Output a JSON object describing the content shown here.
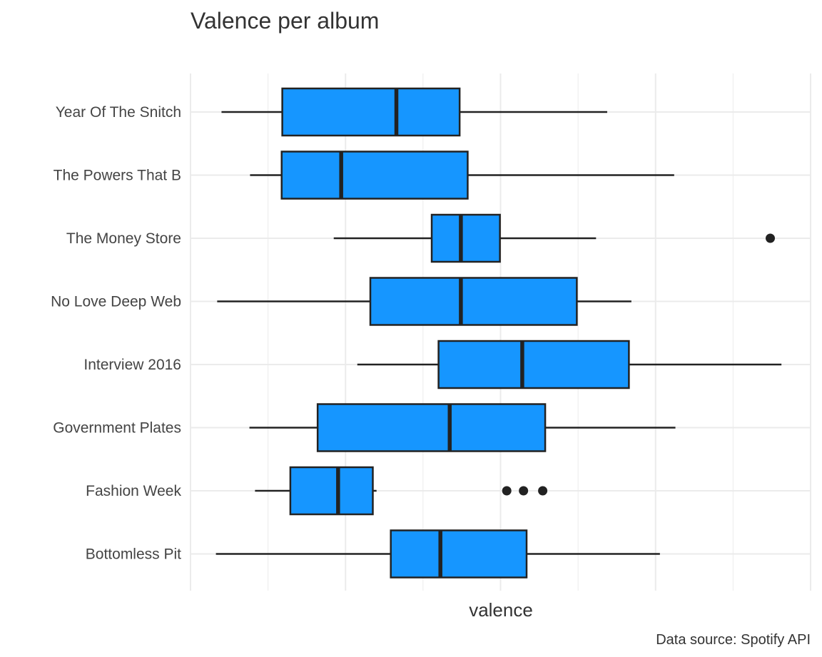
{
  "chart_data": {
    "type": "boxplot",
    "orientation": "horizontal",
    "title": "Valence per album",
    "xlabel": "valence",
    "ylabel": "",
    "caption": "Data source: Spotify API",
    "xlim": [
      0.0,
      1.0
    ],
    "grid": true,
    "box_color": "#1696ff",
    "outline_color": "#222222",
    "grid_color": "#ebebeb",
    "categories": [
      "Year Of The Snitch",
      "The Powers That B",
      "The Money Store",
      "No Love Deep Web",
      "Interview 2016",
      "Government Plates",
      "Fashion Week",
      "Bottomless Pit"
    ],
    "boxes": [
      {
        "label": "Year Of The Snitch",
        "whisker_low": 0.05,
        "q1": 0.148,
        "median": 0.332,
        "q3": 0.434,
        "whisker_high": 0.672,
        "outliers": []
      },
      {
        "label": "The Powers That B",
        "whisker_low": 0.096,
        "q1": 0.147,
        "median": 0.243,
        "q3": 0.447,
        "whisker_high": 0.78,
        "outliers": []
      },
      {
        "label": "The Money Store",
        "whisker_low": 0.231,
        "q1": 0.389,
        "median": 0.436,
        "q3": 0.499,
        "whisker_high": 0.654,
        "outliers": [
          0.935
        ]
      },
      {
        "label": "No Love Deep Web",
        "whisker_low": 0.043,
        "q1": 0.29,
        "median": 0.436,
        "q3": 0.623,
        "whisker_high": 0.711,
        "outliers": []
      },
      {
        "label": "Interview 2016",
        "whisker_low": 0.269,
        "q1": 0.4,
        "median": 0.535,
        "q3": 0.707,
        "whisker_high": 0.953,
        "outliers": []
      },
      {
        "label": "Government Plates",
        "whisker_low": 0.095,
        "q1": 0.205,
        "median": 0.418,
        "q3": 0.572,
        "whisker_high": 0.782,
        "outliers": []
      },
      {
        "label": "Fashion Week",
        "whisker_low": 0.104,
        "q1": 0.161,
        "median": 0.238,
        "q3": 0.294,
        "whisker_high": 0.3,
        "outliers": [
          0.51,
          0.537,
          0.568
        ]
      },
      {
        "label": "Bottomless Pit",
        "whisker_low": 0.041,
        "q1": 0.323,
        "median": 0.403,
        "q3": 0.542,
        "whisker_high": 0.757,
        "outliers": []
      }
    ]
  }
}
